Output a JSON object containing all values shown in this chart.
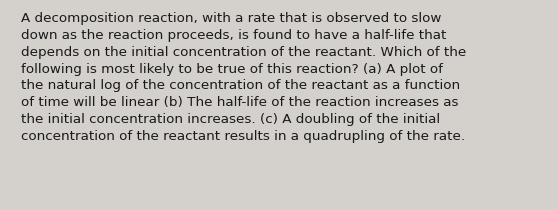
{
  "lines": [
    "A decomposition reaction, with a rate that is observed to slow",
    "down as the reaction proceeds, is found to have a half-life that",
    "depends on the initial concentration of the reactant. Which of the",
    "following is most likely to be true of this reaction? (a) A plot of",
    "the natural log of the concentration of the reactant as a function",
    "of time will be linear (b) The half-life of the reaction increases as",
    "the initial concentration increases. (c) A doubling of the initial",
    "concentration of the reactant results in a quadrupling of the rate."
  ],
  "background_color": "#d4d1cc",
  "text_color": "#1a1a1a",
  "font_size": 9.7,
  "fig_width": 5.58,
  "fig_height": 2.09,
  "dpi": 100
}
